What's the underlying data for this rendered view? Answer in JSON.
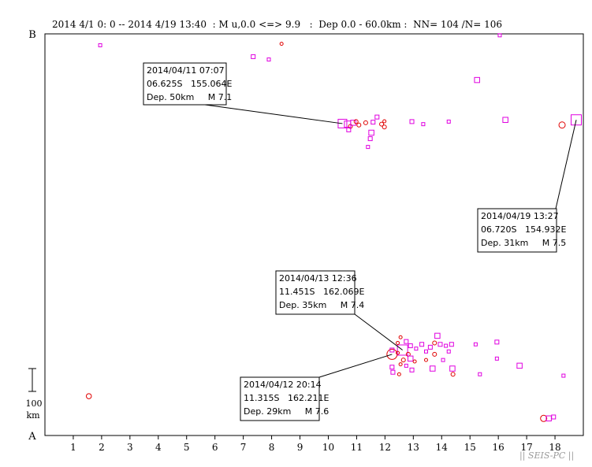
{
  "header": "2014 4/1 0: 0 -- 2014 4/19 13:40  : M u,0.0 <=> 9.9   :  Dep 0.0 - 60.0km :  NN= 104 /N= 106",
  "brand": "|| SEIS-PC ||",
  "colors": {
    "quake": "#e000e0",
    "deep_marker": "#e00000",
    "axis": "#000000"
  },
  "chart_data": {
    "type": "scatter",
    "title": "2014 4/1 0: 0 -- 2014 4/19 13:40  : M u,0.0 <=> 9.9   :  Dep 0.0 - 60.0km :  NN= 104 /N= 106",
    "xlabel": "",
    "ylabel": "",
    "xlim": [
      0,
      19
    ],
    "ylim": [
      0,
      14.1
    ],
    "x_ticks": [
      "1",
      "2",
      "3",
      "4",
      "5",
      "6",
      "7",
      "8",
      "9",
      "10",
      "11",
      "12",
      "13",
      "14",
      "15",
      "16",
      "17",
      "18"
    ],
    "y_end_labels": {
      "top": "B",
      "bottom": "A"
    },
    "scale_bar": {
      "value": "100",
      "unit": "km"
    },
    "grid": false,
    "points": [
      {
        "x": 1.55,
        "y": 1.38,
        "m": 4.6,
        "s": "c"
      },
      {
        "x": 1.95,
        "y": 13.7,
        "m": 4.3,
        "s": "s"
      },
      {
        "x": 7.35,
        "y": 13.3,
        "m": 4.4,
        "s": "s"
      },
      {
        "x": 7.9,
        "y": 13.2,
        "m": 4.3,
        "s": "s"
      },
      {
        "x": 8.35,
        "y": 13.75,
        "m": 4.3,
        "s": "c"
      },
      {
        "x": 10.5,
        "y": 10.95,
        "m": 7.1,
        "s": "s"
      },
      {
        "x": 10.68,
        "y": 10.93,
        "m": 5.0,
        "s": "s"
      },
      {
        "x": 10.78,
        "y": 10.85,
        "m": 4.5,
        "s": "c"
      },
      {
        "x": 10.88,
        "y": 10.98,
        "m": 4.6,
        "s": "s"
      },
      {
        "x": 10.98,
        "y": 11.02,
        "m": 4.5,
        "s": "c"
      },
      {
        "x": 11.08,
        "y": 10.9,
        "m": 4.4,
        "s": "c"
      },
      {
        "x": 10.72,
        "y": 10.73,
        "m": 4.5,
        "s": "s"
      },
      {
        "x": 11.32,
        "y": 10.98,
        "m": 4.4,
        "s": "c"
      },
      {
        "x": 11.58,
        "y": 11.0,
        "m": 4.4,
        "s": "s"
      },
      {
        "x": 11.72,
        "y": 11.18,
        "m": 4.4,
        "s": "s"
      },
      {
        "x": 11.88,
        "y": 10.93,
        "m": 4.4,
        "s": "c"
      },
      {
        "x": 11.98,
        "y": 10.83,
        "m": 4.5,
        "s": "c"
      },
      {
        "x": 11.98,
        "y": 11.03,
        "m": 4.3,
        "s": "c"
      },
      {
        "x": 11.52,
        "y": 10.63,
        "m": 4.9,
        "s": "s"
      },
      {
        "x": 11.48,
        "y": 10.42,
        "m": 4.4,
        "s": "s"
      },
      {
        "x": 11.4,
        "y": 10.13,
        "m": 4.3,
        "s": "s"
      },
      {
        "x": 12.95,
        "y": 11.02,
        "m": 4.5,
        "s": "s"
      },
      {
        "x": 13.35,
        "y": 10.93,
        "m": 4.3,
        "s": "s"
      },
      {
        "x": 14.25,
        "y": 11.02,
        "m": 4.3,
        "s": "s"
      },
      {
        "x": 15.25,
        "y": 12.48,
        "m": 4.6,
        "s": "s"
      },
      {
        "x": 16.05,
        "y": 14.05,
        "m": 4.3,
        "s": "s"
      },
      {
        "x": 16.25,
        "y": 11.08,
        "m": 4.6,
        "s": "s"
      },
      {
        "x": 18.25,
        "y": 10.9,
        "m": 5.1,
        "s": "c"
      },
      {
        "x": 18.75,
        "y": 11.08,
        "m": 7.5,
        "s": "s"
      },
      {
        "x": 12.25,
        "y": 2.85,
        "m": 7.6,
        "s": "c"
      },
      {
        "x": 12.62,
        "y": 3.0,
        "m": 7.4,
        "s": "s"
      },
      {
        "x": 12.25,
        "y": 3.0,
        "m": 4.4,
        "s": "s"
      },
      {
        "x": 12.45,
        "y": 3.25,
        "m": 4.3,
        "s": "c"
      },
      {
        "x": 12.55,
        "y": 3.45,
        "m": 4.3,
        "s": "c"
      },
      {
        "x": 12.75,
        "y": 3.3,
        "m": 4.4,
        "s": "s"
      },
      {
        "x": 12.9,
        "y": 3.15,
        "m": 4.5,
        "s": "s"
      },
      {
        "x": 12.45,
        "y": 2.9,
        "m": 4.3,
        "s": "c"
      },
      {
        "x": 12.82,
        "y": 2.85,
        "m": 4.4,
        "s": "c"
      },
      {
        "x": 12.65,
        "y": 2.65,
        "m": 4.4,
        "s": "c"
      },
      {
        "x": 12.55,
        "y": 2.5,
        "m": 4.3,
        "s": "c"
      },
      {
        "x": 12.75,
        "y": 2.45,
        "m": 4.3,
        "s": "s"
      },
      {
        "x": 12.9,
        "y": 2.7,
        "m": 4.6,
        "s": "s"
      },
      {
        "x": 12.25,
        "y": 2.4,
        "m": 4.4,
        "s": "s"
      },
      {
        "x": 12.28,
        "y": 2.22,
        "m": 4.5,
        "s": "s"
      },
      {
        "x": 12.5,
        "y": 2.15,
        "m": 4.3,
        "s": "c"
      },
      {
        "x": 12.95,
        "y": 2.3,
        "m": 4.4,
        "s": "s"
      },
      {
        "x": 13.05,
        "y": 2.6,
        "m": 4.3,
        "s": "c"
      },
      {
        "x": 13.1,
        "y": 3.05,
        "m": 4.3,
        "s": "s"
      },
      {
        "x": 13.3,
        "y": 3.2,
        "m": 4.4,
        "s": "s"
      },
      {
        "x": 13.45,
        "y": 2.95,
        "m": 4.3,
        "s": "s"
      },
      {
        "x": 13.45,
        "y": 2.65,
        "m": 4.3,
        "s": "c"
      },
      {
        "x": 13.6,
        "y": 3.1,
        "m": 4.5,
        "s": "s"
      },
      {
        "x": 13.75,
        "y": 3.25,
        "m": 4.4,
        "s": "c"
      },
      {
        "x": 13.85,
        "y": 3.5,
        "m": 4.7,
        "s": "s"
      },
      {
        "x": 13.75,
        "y": 2.85,
        "m": 4.4,
        "s": "c"
      },
      {
        "x": 13.68,
        "y": 2.35,
        "m": 4.6,
        "s": "s"
      },
      {
        "x": 13.95,
        "y": 3.2,
        "m": 4.4,
        "s": "s"
      },
      {
        "x": 14.15,
        "y": 3.15,
        "m": 4.3,
        "s": "s"
      },
      {
        "x": 14.25,
        "y": 2.95,
        "m": 4.3,
        "s": "s"
      },
      {
        "x": 14.35,
        "y": 3.2,
        "m": 4.4,
        "s": "s"
      },
      {
        "x": 14.05,
        "y": 2.65,
        "m": 4.3,
        "s": "s"
      },
      {
        "x": 14.38,
        "y": 2.35,
        "m": 4.7,
        "s": "s"
      },
      {
        "x": 14.4,
        "y": 2.15,
        "m": 4.4,
        "s": "c"
      },
      {
        "x": 15.2,
        "y": 3.2,
        "m": 4.3,
        "s": "s"
      },
      {
        "x": 15.35,
        "y": 2.15,
        "m": 4.3,
        "s": "s"
      },
      {
        "x": 15.95,
        "y": 3.28,
        "m": 4.5,
        "s": "s"
      },
      {
        "x": 15.95,
        "y": 2.7,
        "m": 4.3,
        "s": "s"
      },
      {
        "x": 16.75,
        "y": 2.45,
        "m": 4.7,
        "s": "s"
      },
      {
        "x": 17.6,
        "y": 0.6,
        "m": 5.2,
        "s": "c"
      },
      {
        "x": 17.78,
        "y": 0.6,
        "m": 4.6,
        "s": "s"
      },
      {
        "x": 17.95,
        "y": 0.65,
        "m": 4.4,
        "s": "s"
      },
      {
        "x": 18.3,
        "y": 2.1,
        "m": 4.3,
        "s": "s"
      }
    ],
    "annotations": [
      {
        "lines": [
          "2014/04/11 07:07",
          "06.625S   155.064E",
          "Dep. 50km     M 7.1"
        ],
        "target": 5
      },
      {
        "lines": [
          "2014/04/19 13:27",
          "06.720S   154.932E",
          "Dep. 31km     M 7.5"
        ],
        "target": 28
      },
      {
        "lines": [
          "2014/04/13 12:36",
          "11.451S   162.069E",
          "Dep. 35km     M 7.4"
        ],
        "target": 30
      },
      {
        "lines": [
          "2014/04/12 20:14",
          "11.315S   162.211E",
          "Dep. 29km     M 7.6"
        ],
        "target": 29
      }
    ]
  }
}
